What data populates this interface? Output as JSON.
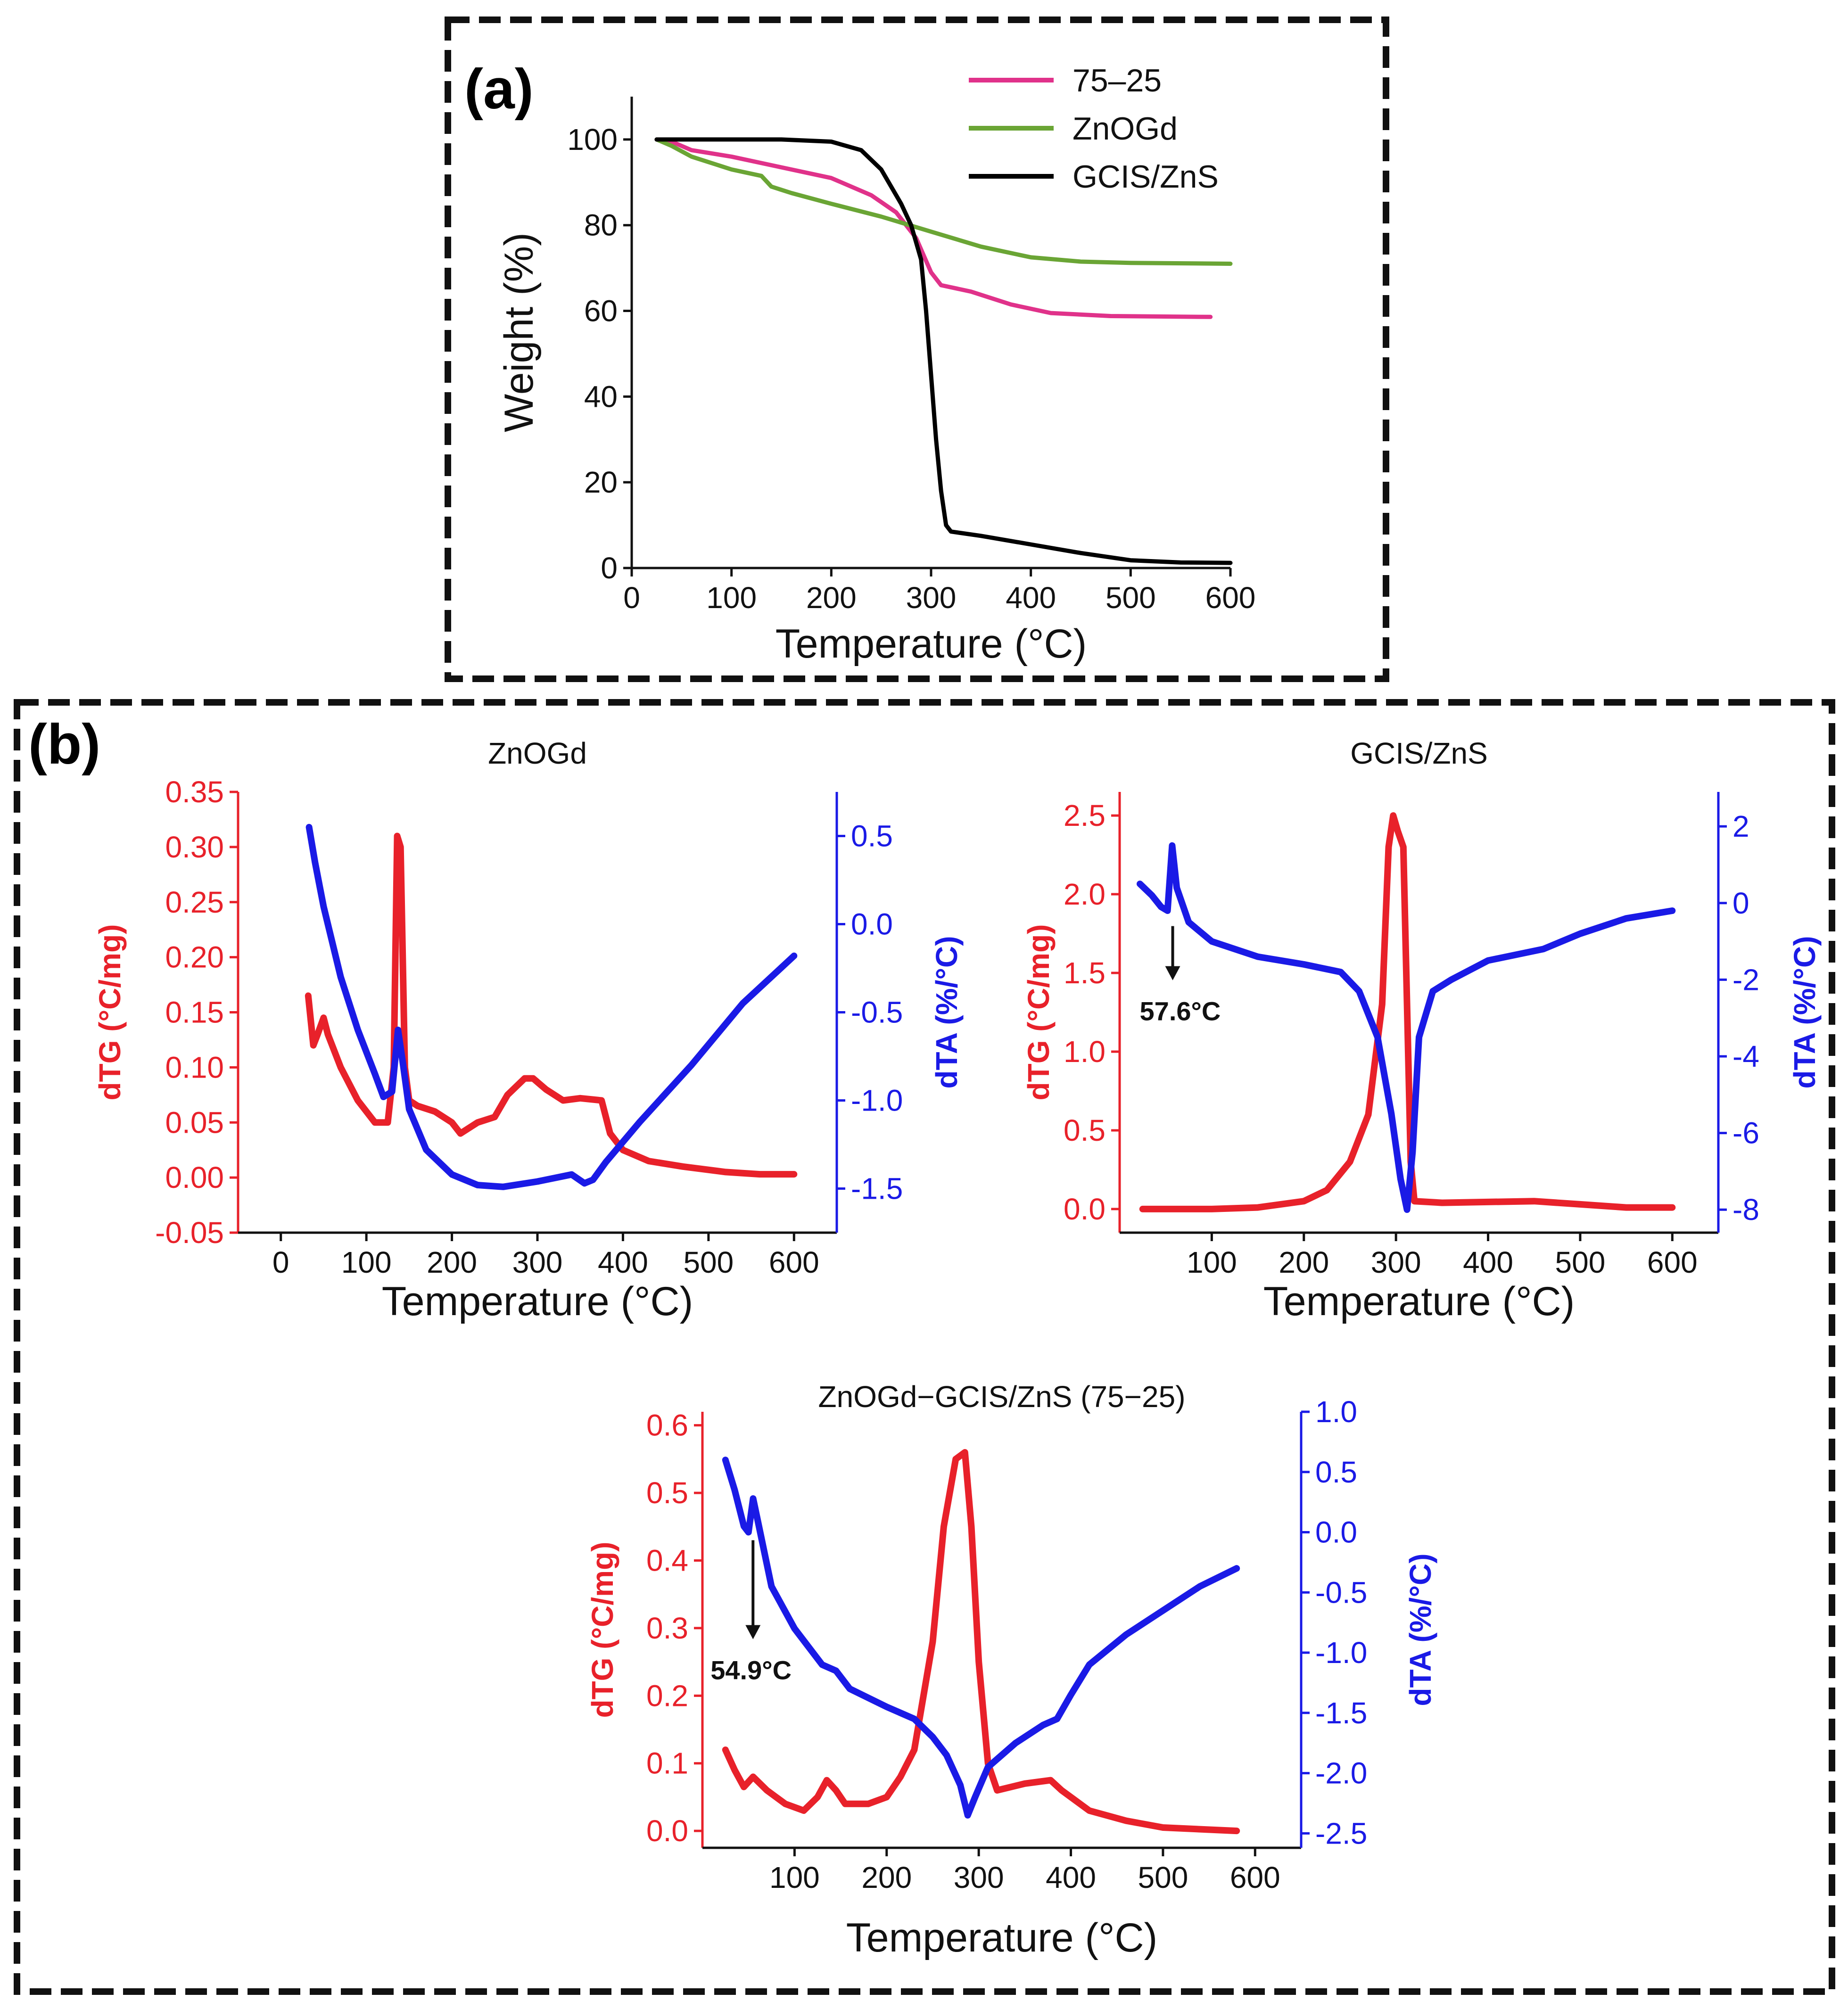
{
  "figure": {
    "panel_a_label": "(a)",
    "panel_b_label": "(b)"
  },
  "chart_data": [
    {
      "id": "a",
      "type": "line",
      "title": "",
      "xlabel": "Temperature (°C)",
      "ylabel": "Weight (%)",
      "xlim": [
        0,
        600
      ],
      "ylim": [
        0,
        110
      ],
      "xticks": [
        0,
        100,
        200,
        300,
        400,
        500,
        600
      ],
      "yticks": [
        0,
        20,
        40,
        60,
        80,
        100
      ],
      "legend_position": "top-right",
      "series": [
        {
          "name": "75–25",
          "color": "#e0328a",
          "axis": "left",
          "points": [
            [
              25,
              100
            ],
            [
              40,
              99.5
            ],
            [
              60,
              97.5
            ],
            [
              100,
              96
            ],
            [
              150,
              93.5
            ],
            [
              200,
              91
            ],
            [
              240,
              87
            ],
            [
              265,
              83
            ],
            [
              285,
              77
            ],
            [
              300,
              69
            ],
            [
              310,
              66
            ],
            [
              340,
              64.5
            ],
            [
              380,
              61.5
            ],
            [
              420,
              59.5
            ],
            [
              480,
              58.8
            ],
            [
              580,
              58.6
            ]
          ]
        },
        {
          "name": "ZnOGd",
          "color": "#6aa535",
          "axis": "left",
          "points": [
            [
              25,
              100
            ],
            [
              40,
              98.5
            ],
            [
              60,
              96
            ],
            [
              100,
              93
            ],
            [
              130,
              91.5
            ],
            [
              140,
              89
            ],
            [
              160,
              87.5
            ],
            [
              200,
              85
            ],
            [
              250,
              82
            ],
            [
              300,
              78.5
            ],
            [
              350,
              75
            ],
            [
              400,
              72.5
            ],
            [
              450,
              71.5
            ],
            [
              500,
              71.2
            ],
            [
              600,
              71
            ]
          ]
        },
        {
          "name": "GCIS/ZnS",
          "color": "#000000",
          "axis": "left",
          "points": [
            [
              25,
              100
            ],
            [
              100,
              100
            ],
            [
              150,
              100
            ],
            [
              200,
              99.5
            ],
            [
              230,
              97.5
            ],
            [
              250,
              93
            ],
            [
              270,
              85
            ],
            [
              280,
              80
            ],
            [
              290,
              72
            ],
            [
              295,
              60
            ],
            [
              300,
              45
            ],
            [
              305,
              30
            ],
            [
              310,
              18
            ],
            [
              315,
              10
            ],
            [
              320,
              8.5
            ],
            [
              350,
              7.5
            ],
            [
              400,
              5.5
            ],
            [
              450,
              3.5
            ],
            [
              500,
              1.8
            ],
            [
              550,
              1.3
            ],
            [
              600,
              1.2
            ]
          ]
        }
      ]
    },
    {
      "id": "b1",
      "type": "line",
      "title": "ZnOGd",
      "xlabel": "Temperature (°C)",
      "ylabel": "dTG (°C/mg)",
      "y2label": "dTA (%/°C)",
      "xlim": [
        -50,
        650
      ],
      "ylim": [
        -0.05,
        0.35
      ],
      "y2lim": [
        -1.75,
        0.75
      ],
      "xticks": [
        0,
        100,
        200,
        300,
        400,
        500,
        600
      ],
      "yticks": [
        "0.35",
        "0.30",
        "0.25",
        "0.20",
        "0.15",
        "0.10",
        "0.05",
        "0.00",
        "-0.05"
      ],
      "y2ticks": [
        "0.5",
        "0.0",
        "-0.5",
        "-1.0",
        "-1.5"
      ],
      "series": [
        {
          "name": "dTG",
          "color": "#e8212a",
          "axis": "left",
          "points": [
            [
              32,
              0.165
            ],
            [
              38,
              0.12
            ],
            [
              43,
              0.13
            ],
            [
              50,
              0.145
            ],
            [
              55,
              0.13
            ],
            [
              70,
              0.1
            ],
            [
              90,
              0.07
            ],
            [
              110,
              0.05
            ],
            [
              125,
              0.05
            ],
            [
              132,
              0.1
            ],
            [
              136,
              0.31
            ],
            [
              140,
              0.3
            ],
            [
              145,
              0.1
            ],
            [
              150,
              0.07
            ],
            [
              160,
              0.065
            ],
            [
              180,
              0.06
            ],
            [
              200,
              0.05
            ],
            [
              210,
              0.04
            ],
            [
              230,
              0.05
            ],
            [
              250,
              0.055
            ],
            [
              265,
              0.075
            ],
            [
              285,
              0.09
            ],
            [
              295,
              0.09
            ],
            [
              310,
              0.08
            ],
            [
              330,
              0.07
            ],
            [
              350,
              0.072
            ],
            [
              375,
              0.07
            ],
            [
              385,
              0.04
            ],
            [
              400,
              0.025
            ],
            [
              430,
              0.015
            ],
            [
              470,
              0.01
            ],
            [
              520,
              0.005
            ],
            [
              560,
              0.003
            ],
            [
              600,
              0.003
            ]
          ]
        },
        {
          "name": "dTA",
          "color": "#1a1ae6",
          "axis": "right",
          "points": [
            [
              33,
              0.55
            ],
            [
              40,
              0.35
            ],
            [
              50,
              0.1
            ],
            [
              70,
              -0.3
            ],
            [
              90,
              -0.6
            ],
            [
              110,
              -0.85
            ],
            [
              120,
              -0.98
            ],
            [
              130,
              -0.95
            ],
            [
              137,
              -0.6
            ],
            [
              143,
              -0.8
            ],
            [
              150,
              -1.05
            ],
            [
              170,
              -1.28
            ],
            [
              200,
              -1.42
            ],
            [
              230,
              -1.48
            ],
            [
              260,
              -1.49
            ],
            [
              300,
              -1.46
            ],
            [
              340,
              -1.42
            ],
            [
              355,
              -1.47
            ],
            [
              365,
              -1.45
            ],
            [
              380,
              -1.35
            ],
            [
              420,
              -1.12
            ],
            [
              480,
              -0.8
            ],
            [
              540,
              -0.45
            ],
            [
              600,
              -0.18
            ]
          ]
        }
      ]
    },
    {
      "id": "b2",
      "type": "line",
      "title": "GCIS/ZnS",
      "xlabel": "Temperature (°C)",
      "ylabel": "dTG (°C/mg)",
      "y2label": "dTA (%/°C)",
      "xlim": [
        0,
        650
      ],
      "ylim": [
        -0.15,
        2.65
      ],
      "y2lim": [
        -8.6,
        2.9
      ],
      "xticks": [
        100,
        200,
        300,
        400,
        500,
        600
      ],
      "yticks": [
        "2.5",
        "2.0",
        "1.5",
        "1.0",
        "0.5",
        "0.0"
      ],
      "y2ticks": [
        "2",
        "0",
        "-2",
        "-4",
        "-6",
        "-8"
      ],
      "annotation": "57.6°C",
      "series": [
        {
          "name": "dTG",
          "color": "#e8212a",
          "axis": "left",
          "points": [
            [
              25,
              0.0
            ],
            [
              100,
              0.0
            ],
            [
              150,
              0.01
            ],
            [
              200,
              0.05
            ],
            [
              225,
              0.12
            ],
            [
              250,
              0.3
            ],
            [
              270,
              0.6
            ],
            [
              285,
              1.3
            ],
            [
              292,
              2.3
            ],
            [
              297,
              2.5
            ],
            [
              302,
              2.4
            ],
            [
              308,
              2.3
            ],
            [
              312,
              1.3
            ],
            [
              316,
              0.3
            ],
            [
              320,
              0.05
            ],
            [
              350,
              0.04
            ],
            [
              450,
              0.05
            ],
            [
              500,
              0.03
            ],
            [
              550,
              0.01
            ],
            [
              600,
              0.01
            ]
          ]
        },
        {
          "name": "dTA",
          "color": "#1a1ae6",
          "axis": "right",
          "points": [
            [
              22,
              0.5
            ],
            [
              35,
              0.2
            ],
            [
              45,
              -0.1
            ],
            [
              52,
              -0.2
            ],
            [
              57,
              1.5
            ],
            [
              62,
              0.4
            ],
            [
              75,
              -0.5
            ],
            [
              100,
              -1.0
            ],
            [
              150,
              -1.4
            ],
            [
              200,
              -1.6
            ],
            [
              240,
              -1.8
            ],
            [
              260,
              -2.3
            ],
            [
              280,
              -3.5
            ],
            [
              295,
              -5.5
            ],
            [
              305,
              -7.2
            ],
            [
              312,
              -8.0
            ],
            [
              318,
              -6.5
            ],
            [
              325,
              -3.5
            ],
            [
              340,
              -2.3
            ],
            [
              360,
              -2.0
            ],
            [
              400,
              -1.5
            ],
            [
              460,
              -1.2
            ],
            [
              500,
              -0.8
            ],
            [
              550,
              -0.4
            ],
            [
              600,
              -0.2
            ]
          ]
        }
      ]
    },
    {
      "id": "b3",
      "type": "line",
      "title": "ZnOGd−GCIS/ZnS (75−25)",
      "xlabel": "Temperature (°C)",
      "ylabel": "dTG (°C/mg)",
      "y2label": "dTA (%/°C)",
      "xlim": [
        0,
        650
      ],
      "ylim": [
        -0.025,
        0.62
      ],
      "y2lim": [
        -2.62,
        1.0
      ],
      "xticks": [
        100,
        200,
        300,
        400,
        500,
        600
      ],
      "yticks": [
        "0.6",
        "0.5",
        "0.4",
        "0.3",
        "0.2",
        "0.1",
        "0.0"
      ],
      "y2ticks": [
        "1.0",
        "0.5",
        "0.0",
        "-0.5",
        "-1.0",
        "-1.5",
        "-2.0",
        "-2.5"
      ],
      "annotation": "54.9°C",
      "series": [
        {
          "name": "dTG",
          "color": "#e8212a",
          "axis": "left",
          "points": [
            [
              25,
              0.12
            ],
            [
              35,
              0.09
            ],
            [
              45,
              0.065
            ],
            [
              55,
              0.08
            ],
            [
              70,
              0.06
            ],
            [
              90,
              0.04
            ],
            [
              110,
              0.03
            ],
            [
              125,
              0.05
            ],
            [
              135,
              0.075
            ],
            [
              145,
              0.06
            ],
            [
              155,
              0.04
            ],
            [
              180,
              0.04
            ],
            [
              200,
              0.05
            ],
            [
              215,
              0.08
            ],
            [
              230,
              0.12
            ],
            [
              250,
              0.28
            ],
            [
              262,
              0.45
            ],
            [
              275,
              0.55
            ],
            [
              285,
              0.56
            ],
            [
              292,
              0.45
            ],
            [
              300,
              0.25
            ],
            [
              310,
              0.1
            ],
            [
              320,
              0.06
            ],
            [
              350,
              0.07
            ],
            [
              378,
              0.075
            ],
            [
              390,
              0.06
            ],
            [
              420,
              0.03
            ],
            [
              460,
              0.015
            ],
            [
              500,
              0.005
            ],
            [
              580,
              0.0
            ]
          ]
        },
        {
          "name": "dTA",
          "color": "#1a1ae6",
          "axis": "right",
          "points": [
            [
              25,
              0.6
            ],
            [
              35,
              0.35
            ],
            [
              45,
              0.05
            ],
            [
              50,
              0.0
            ],
            [
              55,
              0.28
            ],
            [
              60,
              0.1
            ],
            [
              75,
              -0.45
            ],
            [
              100,
              -0.8
            ],
            [
              130,
              -1.1
            ],
            [
              145,
              -1.15
            ],
            [
              160,
              -1.3
            ],
            [
              200,
              -1.45
            ],
            [
              230,
              -1.55
            ],
            [
              250,
              -1.7
            ],
            [
              265,
              -1.85
            ],
            [
              280,
              -2.1
            ],
            [
              288,
              -2.35
            ],
            [
              296,
              -2.2
            ],
            [
              310,
              -1.95
            ],
            [
              340,
              -1.75
            ],
            [
              370,
              -1.6
            ],
            [
              385,
              -1.55
            ],
            [
              400,
              -1.35
            ],
            [
              420,
              -1.1
            ],
            [
              460,
              -0.85
            ],
            [
              500,
              -0.65
            ],
            [
              540,
              -0.45
            ],
            [
              580,
              -0.3
            ]
          ]
        }
      ]
    }
  ]
}
